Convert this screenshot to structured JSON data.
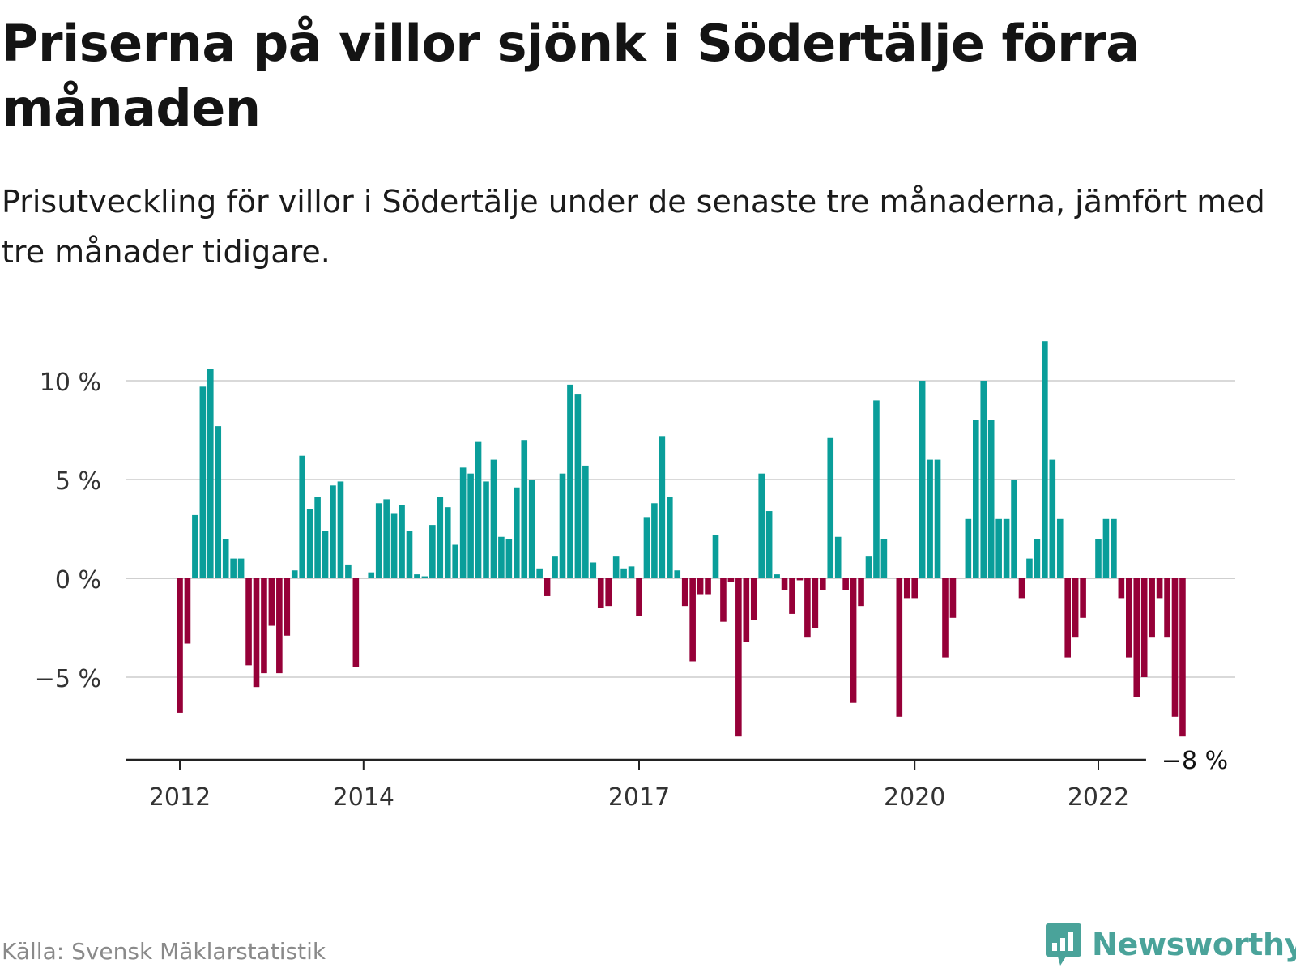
{
  "title": "Priserna på villor sjönk i Södertälje förra månaden",
  "subtitle": "Prisutveckling för villor i Södertälje under de senaste tre månaderna, jämfört med tre månader tidigare.",
  "source": "Källa: Svensk Mäklarstatistik",
  "brand": "Newsworthy",
  "colors": {
    "positive": "#0a9e9a",
    "negative": "#960038",
    "grid": "#d9d9d9",
    "axis": "#222222",
    "brand": "#4aa39a"
  },
  "chart_data": {
    "type": "bar",
    "xlabel": "",
    "ylabel": "",
    "ylim": [
      -9.2,
      12
    ],
    "yticks": [
      {
        "value": 10,
        "label": "10 %"
      },
      {
        "value": 5,
        "label": "5 %"
      },
      {
        "value": 0,
        "label": "0 %"
      },
      {
        "value": -5,
        "label": "−5 %"
      }
    ],
    "xticks": [
      {
        "index": 0,
        "label": "2012"
      },
      {
        "index": 24,
        "label": "2014"
      },
      {
        "index": 60,
        "label": "2017"
      },
      {
        "index": 96,
        "label": "2020"
      },
      {
        "index": 120,
        "label": "2022"
      }
    ],
    "last_value_label": "−8 %",
    "grid": true,
    "values": [
      -6.8,
      -3.3,
      3.2,
      9.7,
      10.6,
      7.7,
      2.0,
      1.0,
      1.0,
      -4.4,
      -5.5,
      -4.8,
      -2.4,
      -4.8,
      -2.9,
      0.4,
      6.2,
      3.5,
      4.1,
      2.4,
      4.7,
      4.9,
      0.7,
      -4.5,
      0,
      0.3,
      3.8,
      4.0,
      3.3,
      3.7,
      2.4,
      0.2,
      0.1,
      2.7,
      4.1,
      3.6,
      1.7,
      5.6,
      5.3,
      6.9,
      4.9,
      6.0,
      2.1,
      2.0,
      4.6,
      7.0,
      5.0,
      0.5,
      -0.9,
      1.1,
      5.3,
      9.8,
      9.3,
      5.7,
      0.8,
      -1.5,
      -1.4,
      1.1,
      0.5,
      0.6,
      -1.9,
      3.1,
      3.8,
      7.2,
      4.1,
      0.4,
      -1.4,
      -4.2,
      -0.8,
      -0.8,
      2.2,
      -2.2,
      -0.2,
      -8.0,
      -3.2,
      -2.1,
      5.3,
      3.4,
      0.2,
      -0.6,
      -1.8,
      -0.1,
      -3.0,
      -2.5,
      -0.6,
      7.1,
      2.1,
      -0.6,
      -6.3,
      -1.4,
      1.1,
      9.0,
      2.0,
      0,
      -7.0,
      -1.0,
      -1.0,
      10.0,
      6.0,
      6.0,
      -4.0,
      -2.0,
      0,
      3.0,
      8.0,
      10.0,
      8.0,
      3.0,
      3.0,
      5.0,
      -1.0,
      1.0,
      2.0,
      12.0,
      6.0,
      3.0,
      -4.0,
      -3.0,
      -2.0,
      0,
      2.0,
      3.0,
      3.0,
      -1.0,
      -4.0,
      -6.0,
      -5.0,
      -3.0,
      -1.0,
      -3.0,
      -7.0,
      -8.0
    ]
  }
}
